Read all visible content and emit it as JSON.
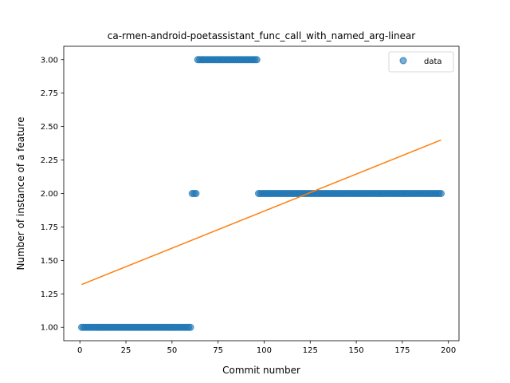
{
  "chart_data": {
    "type": "scatter",
    "title": "ca-rmen-android-poetassistant_func_call_with_named_arg-linear",
    "xlabel": "Commit number",
    "ylabel": "Number of instance of a feature",
    "xlim": [
      -8.75,
      205.75
    ],
    "ylim": [
      0.9,
      3.1
    ],
    "xticks": [
      0,
      25,
      50,
      75,
      100,
      125,
      150,
      175,
      200
    ],
    "yticks": [
      1.0,
      1.25,
      1.5,
      1.75,
      2.0,
      2.25,
      2.5,
      2.75,
      3.0
    ],
    "ytick_labels": [
      "1.00",
      "1.25",
      "1.50",
      "1.75",
      "2.00",
      "2.25",
      "2.50",
      "2.75",
      "3.00"
    ],
    "grid": false,
    "legend": {
      "position": "upper right",
      "entries": [
        "data"
      ]
    },
    "series": [
      {
        "name": "data",
        "kind": "scatter",
        "color": "#1f77b4",
        "segments": [
          {
            "x_start": 1,
            "x_end": 60,
            "y": 1
          },
          {
            "x_start": 61,
            "x_end": 63,
            "y": 2
          },
          {
            "x_start": 64,
            "x_end": 96,
            "y": 3
          },
          {
            "x_start": 97,
            "x_end": 196,
            "y": 2
          }
        ]
      },
      {
        "name": "",
        "kind": "line",
        "color": "#ff7f0e",
        "x": [
          1,
          196
        ],
        "y": [
          1.32,
          2.4
        ]
      }
    ]
  }
}
